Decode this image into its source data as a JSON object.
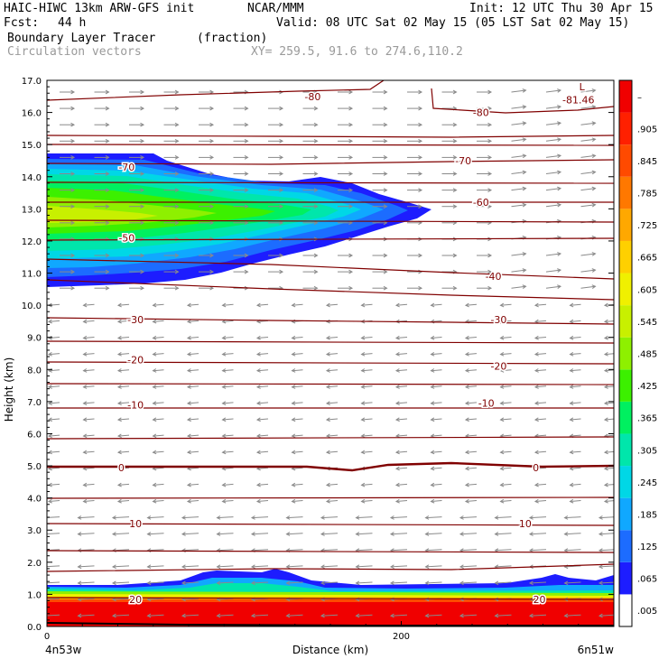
{
  "header": {
    "model": "HAIC-HIWC 13km ARW-GFS init",
    "org": "NCAR/MMM",
    "init": "Init: 12 UTC Thu 30 Apr 15",
    "fcst_label": "Fcst:",
    "fcst_value": "44 h",
    "valid": "Valid: 08 UTC Sat 02 May 15 (05 LST Sat 02 May 15)",
    "field": "Boundary Layer Tracer",
    "units": "(fraction)",
    "vectors": "Circulation vectors",
    "xy": "XY= 259.5, 91.6 to 274.6,110.2"
  },
  "colors": {
    "tracer": [
      "#ffffff",
      "#1d1dff",
      "#1c6cff",
      "#10a8ff",
      "#00d7e6",
      "#00e6ab",
      "#00f060",
      "#3cf000",
      "#8ef000",
      "#c8f000",
      "#f0f000",
      "#ffd000",
      "#ffa800",
      "#ff7800",
      "#ff4a00",
      "#ff2000",
      "#f00000"
    ],
    "contour": "#800000",
    "vector": "#8a8a8a"
  },
  "chart_data": {
    "type": "heatmap",
    "ylabel": "Height (km)",
    "xlabel": "Distance (km)",
    "x_left_label": "4n53w",
    "x_right_label": "6n51w",
    "x_ticks": [
      0,
      200
    ],
    "y_ticks": [
      "0.0",
      "1.0",
      "2.0",
      "3.0",
      "4.0",
      "5.0",
      "6.0",
      "7.0",
      "8.0",
      "9.0",
      "10.0",
      "11.0",
      "12.0",
      "13.0",
      "14.0",
      "15.0",
      "16.0",
      "17.0"
    ],
    "xlim": [
      0,
      320
    ],
    "ylim": [
      0,
      17
    ],
    "colorbar_labels": [
      ".005",
      ".065",
      ".125",
      ".185",
      ".245",
      ".305",
      ".365",
      ".425",
      ".485",
      ".545",
      ".605",
      ".665",
      ".725",
      ".785",
      ".845",
      ".905",
      "–"
    ],
    "temperature_contour_labels": [
      {
        "text": "-80",
        "x": 150,
        "y": 16.5
      },
      {
        "text": "-80",
        "x": 245,
        "y": 16.0
      },
      {
        "text": "-81.46",
        "x": 300,
        "y": 16.4
      },
      {
        "text": "L",
        "x": 302,
        "y": 16.8
      },
      {
        "text": "-70",
        "x": 45,
        "y": 14.3
      },
      {
        "text": "-70",
        "x": 235,
        "y": 14.5
      },
      {
        "text": "-60",
        "x": 245,
        "y": 13.2
      },
      {
        "text": "-50",
        "x": 45,
        "y": 12.1
      },
      {
        "text": "-40",
        "x": 252,
        "y": 10.9
      },
      {
        "text": "-30",
        "x": 50,
        "y": 9.55
      },
      {
        "text": "-30",
        "x": 255,
        "y": 9.55
      },
      {
        "text": "-20",
        "x": 50,
        "y": 8.3
      },
      {
        "text": "-20",
        "x": 255,
        "y": 8.1
      },
      {
        "text": "-10",
        "x": 50,
        "y": 6.9
      },
      {
        "text": "-10",
        "x": 248,
        "y": 6.95
      },
      {
        "text": "0",
        "x": 42,
        "y": 4.95
      },
      {
        "text": "0",
        "x": 276,
        "y": 4.95
      },
      {
        "text": "10",
        "x": 50,
        "y": 3.2
      },
      {
        "text": "10",
        "x": 270,
        "y": 3.2
      },
      {
        "text": "20",
        "x": 50,
        "y": 0.85
      },
      {
        "text": "20",
        "x": 278,
        "y": 0.85
      }
    ]
  }
}
